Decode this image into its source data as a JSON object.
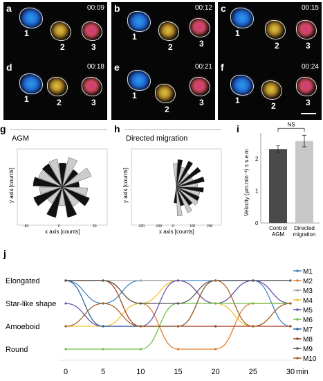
{
  "panels": [
    {
      "label": "a",
      "time": "00:09"
    },
    {
      "label": "b",
      "time": "00:12"
    },
    {
      "label": "c",
      "time": "00:15"
    },
    {
      "label": "d",
      "time": "00:18"
    },
    {
      "label": "e",
      "time": "00:21"
    },
    {
      "label": "f",
      "time": "00:24"
    }
  ],
  "cell_labels": [
    "1",
    "2",
    "3"
  ],
  "rose": {
    "g": {
      "label": "g",
      "title": "AGM",
      "xlabel": "x axis [counts]",
      "ylabel": "y axis [counts]",
      "xticks": [
        "-50",
        "0",
        "50"
      ]
    },
    "h": {
      "label": "h",
      "title": "Directed migration",
      "xlabel": "x axis [counts]",
      "ylabel": "y axis [counts]",
      "xticks": [
        "-200",
        "-100",
        "0",
        "100",
        "200"
      ]
    }
  },
  "chart_data": [
    {
      "type": "bar",
      "panel": "i",
      "categories": [
        "Control AGM",
        "Directed migration"
      ],
      "category_lines": [
        [
          "Control",
          "AGM"
        ],
        [
          "Directed",
          "migration"
        ]
      ],
      "values": [
        2.3,
        2.55
      ],
      "errors": [
        0.1,
        0.18
      ],
      "colors": [
        "#4a4a4a",
        "#c8c8c8"
      ],
      "ylabel": "Velocity (μm.min⁻¹) ± s.e.m",
      "yticks": [
        "0",
        "1",
        "2"
      ],
      "ylim": [
        0,
        2.8
      ],
      "annotation": "NS"
    },
    {
      "type": "line",
      "panel": "j",
      "x": [
        0,
        5,
        10,
        15,
        20,
        25,
        30
      ],
      "xlabel": "min",
      "ycategories": [
        "Round",
        "Amoeboid",
        "Star-like shape",
        "Elongated"
      ],
      "series": [
        {
          "name": "M1",
          "color": "#3d84c6",
          "values": [
            4,
            3,
            4,
            4,
            4,
            4,
            2
          ]
        },
        {
          "name": "M2",
          "color": "#e07b2a",
          "values": [
            4,
            4,
            3,
            1,
            1,
            3,
            3
          ]
        },
        {
          "name": "M3",
          "color": "#a5a5a5",
          "values": [
            4,
            4,
            4,
            4,
            3,
            4,
            3
          ]
        },
        {
          "name": "M4",
          "color": "#f2c12e",
          "values": [
            2,
            2,
            3,
            4,
            3,
            2,
            3
          ]
        },
        {
          "name": "M5",
          "color": "#6b52a8",
          "values": [
            3,
            2,
            2,
            4,
            3,
            4,
            3
          ]
        },
        {
          "name": "M6",
          "color": "#6fbf40",
          "values": [
            1,
            1,
            1,
            3,
            3,
            3,
            3
          ]
        },
        {
          "name": "M7",
          "color": "#2c5f9e",
          "values": [
            4,
            2,
            2,
            2,
            4,
            4,
            4
          ]
        },
        {
          "name": "M8",
          "color": "#9e3a1f",
          "values": [
            4,
            4,
            2,
            2,
            2,
            2,
            2
          ]
        },
        {
          "name": "M9",
          "color": "#555555",
          "values": [
            4,
            4,
            3,
            3,
            4,
            4,
            4
          ]
        },
        {
          "name": "M10",
          "color": "#a0622a",
          "values": [
            2,
            3,
            2,
            2,
            4,
            2,
            3
          ]
        }
      ]
    }
  ],
  "j_label": "j",
  "i_label": "i"
}
